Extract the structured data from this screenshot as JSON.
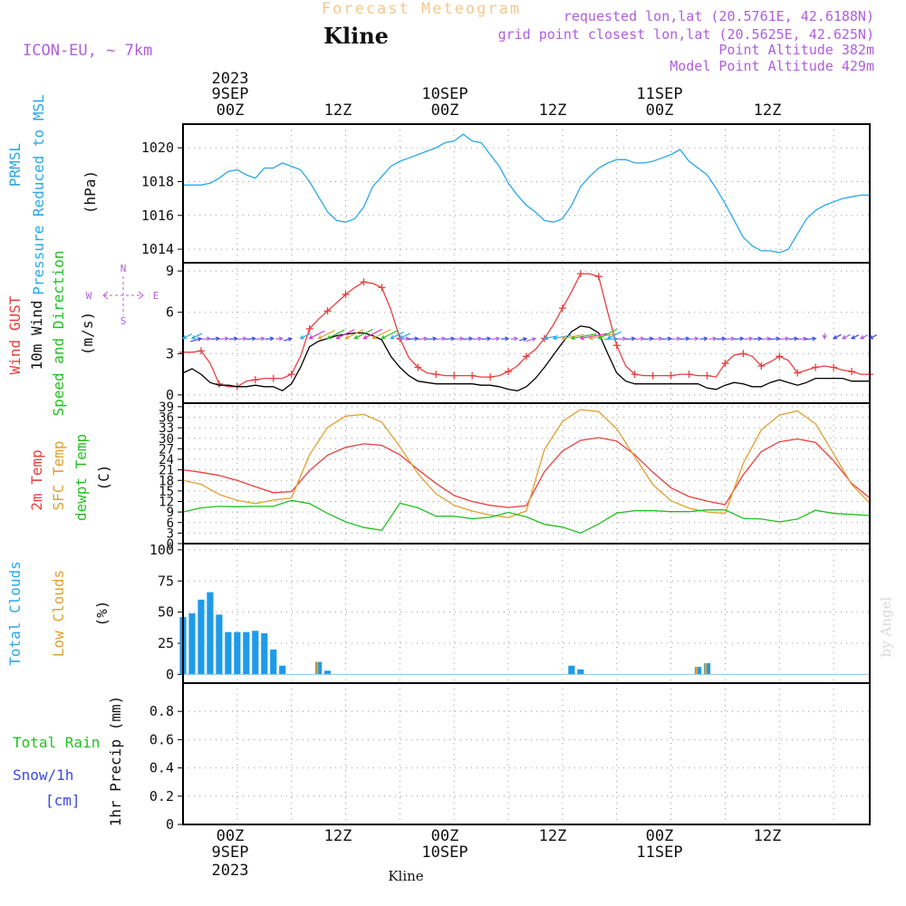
{
  "header": {
    "heading": "Forecast Meteogram",
    "location": "Kline",
    "model": "ICON-EU, ~ 7km",
    "requested": "requested lon,lat (20.5761E, 42.6188N)",
    "gridpoint": "grid point closest lon,lat (20.5625E, 42.625N)",
    "point_alt": "Point Altitude 382m",
    "model_alt": "Model Point Altitude 429m"
  },
  "time_axis": {
    "year": "2023",
    "days": [
      "9SEP",
      "10SEP",
      "11SEP"
    ],
    "ticks": [
      "00Z",
      "12Z",
      "00Z",
      "12Z",
      "00Z",
      "12Z"
    ]
  },
  "footer": {
    "location": "Kline",
    "credit": "by Angel"
  },
  "panels": {
    "pressure": {
      "labels": [
        "PRMSL",
        "Pressure Reduced to MSL"
      ],
      "unit": "(hPa)"
    },
    "wind": {
      "labels": [
        "Wind GUST",
        "10m Wind",
        "Speed and Direction"
      ],
      "unit": "(m/s)",
      "compass": {
        "n": "N",
        "s": "S",
        "w": "W",
        "e": "E"
      }
    },
    "temperature": {
      "labels": [
        "2m Temp",
        "SFC Temp",
        "dewpt Temp"
      ],
      "unit": "(C)"
    },
    "clouds": {
      "labels": [
        "Total Clouds",
        "Low Clouds"
      ],
      "unit": "(%)"
    },
    "precip": {
      "labels": [
        "Total Rain",
        "Snow/1h",
        "[cm]"
      ],
      "unit": "1hr Precip (mm)"
    }
  },
  "colors": {
    "pressure": "#2aa8e8",
    "gust": "#e84040",
    "wind": "#000000",
    "t2m": "#e84040",
    "sfc": "#e0a030",
    "dewpt": "#22c020",
    "total_clouds": "#1e9be8",
    "low_clouds": "#e0a030",
    "grid": "#999999"
  },
  "chart_data": [
    {
      "type": "line",
      "name": "pressure",
      "x_unit": "hours from 2023-09-08 18Z",
      "ylim": [
        1013.2,
        1021.4
      ],
      "yticks": [
        1014,
        1016,
        1018,
        1020
      ],
      "series": [
        {
          "name": "PRMSL",
          "x": [
            0,
            1,
            2,
            3,
            4,
            5,
            6,
            7,
            8,
            9,
            10,
            11,
            12,
            13,
            14,
            15,
            16,
            17,
            18,
            19,
            20,
            21,
            22,
            23,
            24,
            25,
            26,
            27,
            28,
            29,
            30,
            31,
            32,
            33,
            34,
            35,
            36,
            37,
            38,
            39,
            40,
            41,
            42,
            43,
            44,
            45,
            46,
            47,
            48,
            49,
            50,
            51,
            52,
            53,
            54,
            55,
            56,
            57,
            58,
            59,
            60,
            61,
            62,
            63,
            64,
            65,
            66,
            67,
            68,
            69,
            70,
            71,
            72,
            73,
            74,
            75,
            76
          ],
          "values": [
            1017.8,
            1017.8,
            1017.8,
            1017.9,
            1018.2,
            1018.6,
            1018.7,
            1018.4,
            1018.2,
            1018.8,
            1018.8,
            1019.1,
            1018.9,
            1018.7,
            1018.0,
            1017.1,
            1016.2,
            1015.7,
            1015.6,
            1015.8,
            1016.5,
            1017.7,
            1018.3,
            1018.9,
            1019.2,
            1019.4,
            1019.6,
            1019.8,
            1020.0,
            1020.3,
            1020.4,
            1020.8,
            1020.4,
            1020.3,
            1019.6,
            1018.9,
            1017.9,
            1017.2,
            1016.6,
            1016.2,
            1015.7,
            1015.6,
            1015.8,
            1016.6,
            1017.7,
            1018.3,
            1018.8,
            1019.1,
            1019.3,
            1019.3,
            1019.1,
            1019.1,
            1019.2,
            1019.4,
            1019.6,
            1019.9,
            1019.2,
            1018.8,
            1018.4,
            1017.6,
            1016.7,
            1015.7,
            1014.7,
            1014.2,
            1013.9,
            1013.9,
            1013.8,
            1014.0,
            1014.9,
            1015.8,
            1016.3,
            1016.6,
            1016.8,
            1017.0,
            1017.1,
            1017.2,
            1017.2
          ]
        }
      ]
    },
    {
      "type": "line",
      "name": "wind",
      "x_unit": "hours from 2023-09-08 18Z",
      "ylim": [
        -0.6,
        9.6
      ],
      "yticks": [
        0,
        3,
        6,
        9
      ],
      "series": [
        {
          "name": "Wind GUST",
          "x": [
            0,
            1,
            2,
            3,
            4,
            5,
            6,
            7,
            8,
            9,
            10,
            11,
            12,
            13,
            14,
            15,
            16,
            17,
            18,
            19,
            20,
            21,
            22,
            23,
            24,
            25,
            26,
            27,
            28,
            29,
            30,
            31,
            32,
            33,
            34,
            35,
            36,
            37,
            38,
            39,
            40,
            41,
            42,
            43,
            44,
            45,
            46,
            47,
            48,
            49,
            50,
            51,
            52,
            53,
            54,
            55,
            56,
            57,
            58,
            59,
            60,
            61,
            62,
            63,
            64,
            65,
            66,
            67,
            68,
            69,
            70,
            71,
            72,
            73,
            74,
            75,
            76
          ],
          "values": [
            3.1,
            3.1,
            3.2,
            2.3,
            0.8,
            0.6,
            0.6,
            1.0,
            1.1,
            1.2,
            1.2,
            1.2,
            1.5,
            2.8,
            4.8,
            5.5,
            6.1,
            6.7,
            7.3,
            7.8,
            8.2,
            8.1,
            7.8,
            6.2,
            4.1,
            2.7,
            2.0,
            1.6,
            1.5,
            1.4,
            1.4,
            1.4,
            1.4,
            1.3,
            1.3,
            1.4,
            1.7,
            2.1,
            2.8,
            3.3,
            4.1,
            5.1,
            6.3,
            7.5,
            8.8,
            8.8,
            8.6,
            6.0,
            3.6,
            2.1,
            1.5,
            1.4,
            1.4,
            1.4,
            1.4,
            1.5,
            1.5,
            1.4,
            1.4,
            1.3,
            2.3,
            2.9,
            3.0,
            2.8,
            2.1,
            2.4,
            2.8,
            2.5,
            1.6,
            1.8,
            2.0,
            2.1,
            2.0,
            1.8,
            1.7,
            1.5,
            1.5
          ]
        },
        {
          "name": "10m Wind",
          "x": [
            0,
            1,
            2,
            3,
            4,
            5,
            6,
            7,
            8,
            9,
            10,
            11,
            12,
            13,
            14,
            15,
            16,
            17,
            18,
            19,
            20,
            21,
            22,
            23,
            24,
            25,
            26,
            27,
            28,
            29,
            30,
            31,
            32,
            33,
            34,
            35,
            36,
            37,
            38,
            39,
            40,
            41,
            42,
            43,
            44,
            45,
            46,
            47,
            48,
            49,
            50,
            51,
            52,
            53,
            54,
            55,
            56,
            57,
            58,
            59,
            60,
            61,
            62,
            63,
            64,
            65,
            66,
            67,
            68,
            69,
            70,
            71,
            72,
            73,
            74,
            75,
            76
          ],
          "values": [
            1.6,
            1.9,
            1.5,
            0.9,
            0.7,
            0.7,
            0.6,
            0.6,
            0.7,
            0.6,
            0.6,
            0.3,
            0.8,
            2.0,
            3.5,
            3.9,
            4.1,
            4.3,
            4.4,
            4.5,
            4.5,
            4.3,
            4.0,
            2.8,
            2.0,
            1.4,
            1.0,
            0.9,
            0.8,
            0.8,
            0.8,
            0.8,
            0.8,
            0.7,
            0.7,
            0.6,
            0.4,
            0.3,
            0.6,
            1.2,
            2.0,
            2.9,
            3.8,
            4.6,
            5.0,
            4.9,
            4.5,
            3.0,
            1.6,
            1.0,
            0.8,
            0.8,
            0.8,
            0.8,
            0.8,
            0.8,
            0.8,
            0.8,
            0.5,
            0.4,
            0.7,
            0.9,
            0.8,
            0.6,
            0.6,
            0.9,
            1.1,
            0.9,
            0.7,
            0.9,
            1.2,
            1.2,
            1.2,
            1.2,
            1.0,
            1.0,
            1.0
          ]
        }
      ]
    },
    {
      "type": "line",
      "name": "temperature",
      "x_unit": "hours from 2023-09-08 18Z",
      "ylim": [
        0,
        40
      ],
      "yticks": [
        0,
        3,
        6,
        9,
        12,
        15,
        18,
        21,
        24,
        27,
        30,
        33,
        36,
        39
      ],
      "series": [
        {
          "name": "2m Temp",
          "x": [
            0,
            2,
            4,
            6,
            8,
            10,
            12,
            14,
            16,
            18,
            20,
            22,
            24,
            26,
            28,
            30,
            32,
            34,
            36,
            38,
            40,
            42,
            44,
            46,
            48,
            50,
            52,
            54,
            56,
            58,
            60,
            62,
            64,
            66,
            68,
            70,
            72,
            74,
            76
          ],
          "values": [
            21.0,
            20.3,
            19.4,
            18.0,
            16.2,
            14.5,
            14.8,
            20.8,
            25.2,
            27.4,
            28.4,
            28.0,
            25.3,
            21.1,
            17.1,
            13.7,
            12.0,
            10.9,
            10.3,
            10.8,
            20.5,
            26.4,
            29.4,
            30.2,
            29.2,
            25.3,
            20.3,
            15.9,
            13.4,
            12.1,
            11.1,
            19.6,
            26.2,
            29.0,
            29.8,
            28.8,
            23.6,
            17.1,
            13.0
          ]
        },
        {
          "name": "SFC Temp",
          "x": [
            0,
            2,
            4,
            6,
            8,
            10,
            12,
            14,
            16,
            18,
            20,
            22,
            24,
            26,
            28,
            30,
            32,
            34,
            36,
            38,
            40,
            42,
            44,
            46,
            48,
            50,
            52,
            54,
            56,
            58,
            60,
            62,
            64,
            66,
            68,
            70,
            72,
            74,
            76
          ],
          "values": [
            18.0,
            16.9,
            14.0,
            12.3,
            11.4,
            12.4,
            13.0,
            25.3,
            33.1,
            36.3,
            36.8,
            34.6,
            27.6,
            19.9,
            14.2,
            10.9,
            9.3,
            8.1,
            7.4,
            9.3,
            26.8,
            34.8,
            38.2,
            37.6,
            32.7,
            24.7,
            16.8,
            12.2,
            10.1,
            9.0,
            8.6,
            22.9,
            32.4,
            36.6,
            37.8,
            34.1,
            25.6,
            16.8,
            11.5
          ]
        },
        {
          "name": "dewpt Temp",
          "x": [
            0,
            2,
            4,
            6,
            8,
            10,
            12,
            14,
            16,
            18,
            20,
            22,
            24,
            26,
            28,
            30,
            32,
            34,
            36,
            38,
            40,
            42,
            44,
            46,
            48,
            50,
            52,
            54,
            56,
            58,
            60,
            62,
            64,
            66,
            68,
            70,
            72,
            74,
            76
          ],
          "values": [
            9.0,
            10.2,
            10.6,
            10.5,
            10.6,
            10.6,
            12.3,
            11.4,
            8.6,
            6.2,
            4.6,
            3.8,
            11.5,
            10.2,
            7.8,
            7.8,
            7.1,
            7.5,
            8.9,
            7.6,
            5.5,
            4.7,
            3.0,
            5.6,
            8.7,
            9.4,
            9.4,
            9.1,
            9.1,
            9.6,
            9.6,
            7.2,
            7.0,
            6.2,
            7.0,
            9.5,
            8.6,
            8.3,
            8.0
          ]
        }
      ]
    },
    {
      "type": "bar",
      "name": "clouds",
      "x_unit": "hours from 2023-09-08 18Z",
      "ylim": [
        -7,
        105
      ],
      "yticks": [
        0,
        25,
        50,
        75,
        100
      ],
      "series": [
        {
          "name": "Total Clouds",
          "x": [
            0,
            1,
            2,
            3,
            4,
            5,
            6,
            7,
            8,
            9,
            10,
            11,
            15,
            16,
            43,
            44,
            57,
            58
          ],
          "values": [
            46,
            49,
            60,
            66,
            48,
            34,
            34,
            34,
            35,
            33,
            20,
            7,
            10,
            3,
            7,
            4,
            6,
            9
          ]
        },
        {
          "name": "Low Clouds",
          "x": [
            15,
            57,
            58
          ],
          "values": [
            10,
            6,
            9
          ]
        }
      ]
    },
    {
      "type": "line",
      "name": "precip",
      "x_unit": "hours from 2023-09-08 18Z",
      "ylim": [
        0,
        1.0
      ],
      "yticks": [
        0,
        0.2,
        0.4,
        0.6,
        0.8
      ],
      "series": [
        {
          "name": "Total Rain",
          "x": [
            0,
            76
          ],
          "values": [
            0,
            0
          ]
        },
        {
          "name": "Snow/1h",
          "x": [
            0,
            76
          ],
          "values": [
            0,
            0
          ]
        }
      ]
    }
  ],
  "wind_barbs": {
    "x": [
      0,
      1,
      2,
      3,
      4,
      5,
      6,
      7,
      8,
      9,
      10,
      11,
      12,
      13,
      14,
      15,
      16,
      17,
      18,
      19,
      20,
      21,
      22,
      23,
      24,
      25,
      26,
      27,
      28,
      29,
      30,
      31,
      32,
      33,
      34,
      35,
      36,
      37,
      38,
      39,
      40,
      41,
      42,
      43,
      44,
      45,
      46,
      47,
      48,
      49,
      50,
      51,
      52,
      53,
      54,
      55,
      56,
      57,
      58,
      59,
      60,
      61,
      62,
      63,
      64,
      65,
      66,
      67,
      68,
      69,
      70,
      71,
      72,
      73,
      74,
      75,
      76
    ],
    "speed": [
      1.6,
      1.9,
      1.5,
      0.9,
      0.7,
      0.7,
      0.6,
      0.6,
      0.7,
      0.6,
      0.6,
      0.3,
      0.8,
      2.0,
      3.5,
      3.9,
      4.1,
      4.3,
      4.4,
      4.5,
      4.5,
      4.3,
      4.0,
      2.8,
      2.0,
      1.4,
      1.0,
      0.9,
      0.8,
      0.8,
      0.8,
      0.8,
      0.8,
      0.7,
      0.7,
      0.6,
      0.4,
      0.3,
      0.6,
      1.2,
      2.0,
      2.9,
      3.8,
      4.6,
      5.0,
      4.9,
      4.5,
      3.0,
      1.6,
      1.0,
      0.8,
      0.8,
      0.8,
      0.8,
      0.8,
      0.8,
      0.8,
      0.8,
      0.5,
      0.4,
      0.7,
      0.9,
      0.8,
      0.6,
      0.6,
      0.9,
      1.1,
      0.9,
      0.7,
      0.9,
      1.2,
      1.2,
      1.2,
      1.2,
      1.0,
      1.0,
      1.0
    ],
    "direction": [
      225,
      225,
      60,
      80,
      80,
      80,
      80,
      80,
      80,
      80,
      80,
      80,
      60,
      225,
      225,
      225,
      225,
      225,
      225,
      225,
      225,
      225,
      225,
      225,
      225,
      80,
      80,
      80,
      80,
      80,
      80,
      80,
      80,
      80,
      80,
      80,
      80,
      80,
      60,
      60,
      250,
      250,
      250,
      250,
      250,
      250,
      225,
      225,
      80,
      80,
      80,
      80,
      80,
      80,
      80,
      80,
      80,
      80,
      80,
      80,
      80,
      80,
      80,
      80,
      80,
      80,
      80,
      80,
      80,
      80,
      80,
      180,
      225,
      225,
      225,
      225,
      225
    ]
  }
}
